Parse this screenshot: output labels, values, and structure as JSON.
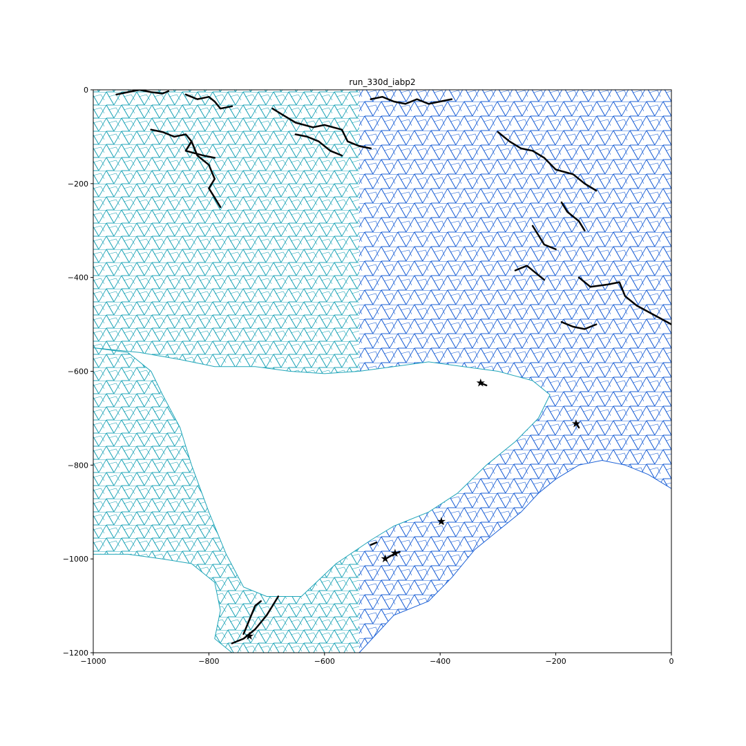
{
  "chart_data": {
    "type": "mesh",
    "title": "run_330d_iabp2",
    "xlabel": "",
    "ylabel": "",
    "xlim": [
      -1000,
      0
    ],
    "ylim": [
      -1200,
      0
    ],
    "x_ticks": [
      -1000,
      -800,
      -600,
      -400,
      -200,
      0
    ],
    "x_tick_labels": [
      "−1000",
      "−800",
      "−600",
      "−400",
      "−200",
      "0"
    ],
    "y_ticks": [
      0,
      -200,
      -400,
      -600,
      -800,
      -1000,
      -1200
    ],
    "y_tick_labels": [
      "0",
      "−200",
      "−400",
      "−600",
      "−800",
      "−1000",
      "−1200"
    ],
    "grid": false,
    "mesh_colors": {
      "left_region": "#1fa5b8",
      "right_region": "#1a5fd6"
    },
    "trajectory_color": "#000000",
    "land_mask_polygon": [
      [
        -1000,
        -550
      ],
      [
        -970,
        -555
      ],
      [
        -940,
        -560
      ],
      [
        -900,
        -600
      ],
      [
        -880,
        -650
      ],
      [
        -850,
        -720
      ],
      [
        -830,
        -800
      ],
      [
        -800,
        -900
      ],
      [
        -770,
        -990
      ],
      [
        -740,
        -1060
      ],
      [
        -700,
        -1080
      ],
      [
        -640,
        -1080
      ],
      [
        -580,
        -1010
      ],
      [
        -520,
        -960
      ],
      [
        -480,
        -930
      ],
      [
        -420,
        -900
      ],
      [
        -370,
        -860
      ],
      [
        -320,
        -800
      ],
      [
        -270,
        -750
      ],
      [
        -230,
        -700
      ],
      [
        -210,
        -650
      ],
      [
        -240,
        -620
      ],
      [
        -300,
        -600
      ],
      [
        -360,
        -590
      ],
      [
        -420,
        -580
      ],
      [
        -480,
        -590
      ],
      [
        -540,
        -600
      ],
      [
        -600,
        -605
      ],
      [
        -660,
        -600
      ],
      [
        -720,
        -590
      ],
      [
        -790,
        -590
      ],
      [
        -850,
        -575
      ],
      [
        -920,
        -560
      ],
      [
        -1000,
        -550
      ]
    ],
    "land_mask_polygon_2": [
      [
        -1000,
        -1200
      ],
      [
        -1000,
        -990
      ],
      [
        -940,
        -990
      ],
      [
        -880,
        -1000
      ],
      [
        -830,
        -1010
      ],
      [
        -790,
        -1050
      ],
      [
        -780,
        -1110
      ],
      [
        -790,
        -1170
      ],
      [
        -760,
        -1200
      ]
    ],
    "land_mask_polygon_3": [
      [
        -540,
        -1200
      ],
      [
        -480,
        -1120
      ],
      [
        -420,
        -1090
      ],
      [
        -380,
        -1040
      ],
      [
        -340,
        -980
      ],
      [
        -300,
        -940
      ],
      [
        -260,
        -900
      ],
      [
        -230,
        -860
      ],
      [
        -200,
        -830
      ],
      [
        -160,
        -800
      ],
      [
        -120,
        -790
      ],
      [
        -80,
        -800
      ],
      [
        -40,
        -820
      ],
      [
        0,
        -850
      ],
      [
        0,
        -1200
      ]
    ],
    "trajectories": [
      [
        [
          -960,
          -10
        ],
        [
          -940,
          -5
        ],
        [
          -920,
          0
        ],
        [
          -900,
          -5
        ],
        [
          -880,
          -8
        ],
        [
          -870,
          -3
        ]
      ],
      [
        [
          -840,
          -10
        ],
        [
          -820,
          -20
        ],
        [
          -800,
          -15
        ],
        [
          -790,
          -25
        ],
        [
          -780,
          -40
        ],
        [
          -760,
          -35
        ]
      ],
      [
        [
          -900,
          -85
        ],
        [
          -880,
          -90
        ],
        [
          -860,
          -100
        ],
        [
          -840,
          -95
        ],
        [
          -830,
          -110
        ],
        [
          -820,
          -140
        ],
        [
          -800,
          -160
        ],
        [
          -790,
          -190
        ],
        [
          -800,
          -210
        ],
        [
          -790,
          -230
        ],
        [
          -780,
          -250
        ]
      ],
      [
        [
          -830,
          -110
        ],
        [
          -840,
          -130
        ],
        [
          -810,
          -140
        ],
        [
          -790,
          -145
        ]
      ],
      [
        [
          -690,
          -40
        ],
        [
          -670,
          -55
        ],
        [
          -650,
          -70
        ],
        [
          -620,
          -80
        ],
        [
          -600,
          -75
        ],
        [
          -570,
          -85
        ],
        [
          -560,
          -110
        ],
        [
          -540,
          -120
        ],
        [
          -520,
          -125
        ]
      ],
      [
        [
          -650,
          -95
        ],
        [
          -630,
          -100
        ],
        [
          -610,
          -110
        ],
        [
          -590,
          -130
        ],
        [
          -570,
          -140
        ]
      ],
      [
        [
          -520,
          -20
        ],
        [
          -500,
          -15
        ],
        [
          -480,
          -25
        ],
        [
          -460,
          -30
        ],
        [
          -440,
          -20
        ],
        [
          -420,
          -30
        ],
        [
          -400,
          -25
        ],
        [
          -380,
          -20
        ]
      ],
      [
        [
          -300,
          -90
        ],
        [
          -280,
          -110
        ],
        [
          -260,
          -125
        ],
        [
          -240,
          -130
        ],
        [
          -220,
          -145
        ],
        [
          -200,
          -170
        ],
        [
          -170,
          -180
        ],
        [
          -150,
          -200
        ],
        [
          -130,
          -215
        ]
      ],
      [
        [
          -190,
          -240
        ],
        [
          -180,
          -260
        ],
        [
          -160,
          -280
        ],
        [
          -150,
          -300
        ]
      ],
      [
        [
          -240,
          -290
        ],
        [
          -230,
          -310
        ],
        [
          -220,
          -330
        ],
        [
          -200,
          -340
        ]
      ],
      [
        [
          -270,
          -385
        ],
        [
          -250,
          -375
        ],
        [
          -230,
          -395
        ],
        [
          -220,
          -405
        ]
      ],
      [
        [
          -160,
          -400
        ],
        [
          -140,
          -420
        ],
        [
          -110,
          -415
        ],
        [
          -90,
          -410
        ],
        [
          -80,
          -440
        ],
        [
          -60,
          -460
        ],
        [
          -30,
          -480
        ],
        [
          0,
          -500
        ]
      ],
      [
        [
          -190,
          -495
        ],
        [
          -170,
          -505
        ],
        [
          -150,
          -510
        ],
        [
          -130,
          -500
        ]
      ],
      [
        [
          -330,
          -625
        ],
        [
          -320,
          -630
        ]
      ],
      [
        [
          -165,
          -710
        ],
        [
          -160,
          -720
        ]
      ],
      [
        [
          -400,
          -920
        ],
        [
          -395,
          -925
        ]
      ],
      [
        [
          -495,
          -1000
        ],
        [
          -480,
          -990
        ],
        [
          -470,
          -985
        ]
      ],
      [
        [
          -520,
          -970
        ],
        [
          -510,
          -965
        ]
      ],
      [
        [
          -760,
          -1180
        ],
        [
          -740,
          -1170
        ],
        [
          -720,
          -1150
        ],
        [
          -700,
          -1120
        ],
        [
          -690,
          -1100
        ],
        [
          -680,
          -1080
        ]
      ],
      [
        [
          -740,
          -1160
        ],
        [
          -730,
          -1130
        ],
        [
          -720,
          -1100
        ],
        [
          -710,
          -1090
        ]
      ]
    ],
    "star_markers": [
      [
        -330,
        -625
      ],
      [
        -165,
        -712
      ],
      [
        -398,
        -920
      ],
      [
        -495,
        -1000
      ],
      [
        -478,
        -988
      ],
      [
        -730,
        -1165
      ]
    ]
  }
}
